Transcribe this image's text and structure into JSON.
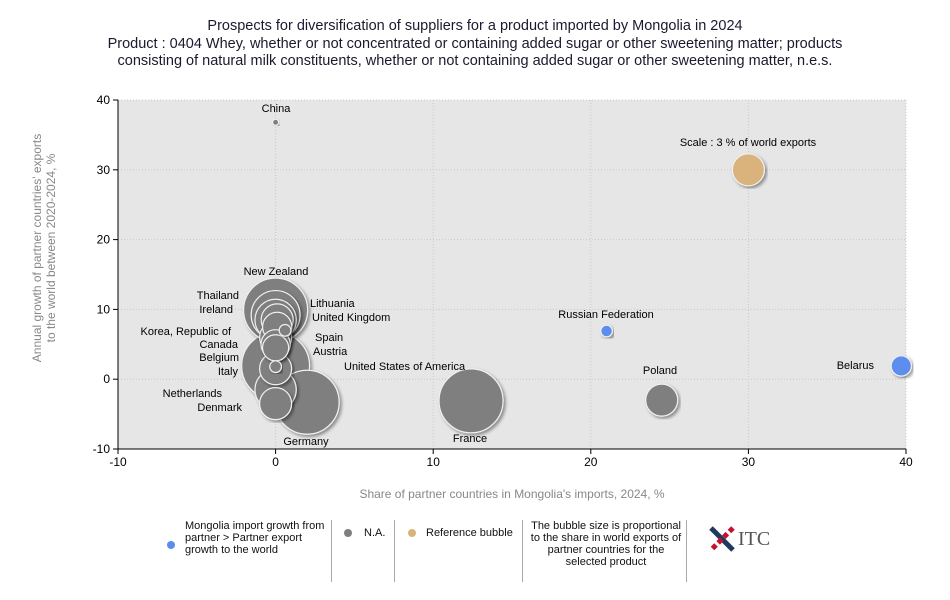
{
  "chart_data": {
    "type": "scatter",
    "title": "Prospects for diversification of suppliers for a product imported by Mongolia in 2024",
    "subtitle_1": "Product : 0404 Whey, whether or not concentrated or containing added sugar or other sweetening matter; products",
    "subtitle_2": "consisting of natural milk constituents, whether or not containing added sugar or other sweetening matter, n.e.s.",
    "xlabel": "Share of partner countries in Mongolia's imports, 2024, %",
    "ylabel_1": "Annual growth of partner countries' exports",
    "ylabel_2": "to the world between 2020-2024, %",
    "xlim": [
      -10,
      40
    ],
    "ylim": [
      -10,
      40
    ],
    "xticks": [
      "-10",
      "0",
      "10",
      "20",
      "30",
      "40"
    ],
    "yticks": [
      "-10",
      "0",
      "10",
      "20",
      "30",
      "40"
    ],
    "grid": true,
    "colors": {
      "higher": "#5b8def",
      "na": "#7f7f7f",
      "reference": "#d9b27c",
      "plot_bg": "#e6e6e6"
    },
    "points": [
      {
        "name": "China",
        "x": 0,
        "y": 36.8,
        "size": 0.1,
        "cat": "na"
      },
      {
        "name": "New Zealand",
        "x": 0,
        "y": 9.9,
        "size": 12,
        "cat": "na"
      },
      {
        "name": "Thailand",
        "x": 0,
        "y": 9.2,
        "size": 7,
        "cat": "na"
      },
      {
        "name": "Ireland",
        "x": 0,
        "y": 8.5,
        "size": 5,
        "cat": "na"
      },
      {
        "name": "Lithuania",
        "x": 0.1,
        "y": 8.5,
        "size": 3,
        "cat": "na"
      },
      {
        "name": "United Kingdom",
        "x": 0.1,
        "y": 7.5,
        "size": 2.5,
        "cat": "na"
      },
      {
        "name": "Spain",
        "x": 0.6,
        "y": 7,
        "size": 0.4,
        "cat": "na"
      },
      {
        "name": "Korea, Republic of",
        "x": 0,
        "y": 6,
        "size": 3,
        "cat": "na"
      },
      {
        "name": "Canada",
        "x": 0,
        "y": 5,
        "size": 2.5,
        "cat": "na"
      },
      {
        "name": "Austria",
        "x": 0,
        "y": 4.5,
        "size": 2,
        "cat": "na"
      },
      {
        "name": "United States of America",
        "x": 0,
        "y": 1.9,
        "size": 13.5,
        "cat": "na"
      },
      {
        "name": "Belgium",
        "x": 0,
        "y": 1.5,
        "size": 3,
        "cat": "na"
      },
      {
        "name": "Italy",
        "x": 0,
        "y": 1.8,
        "size": 0.4,
        "cat": "na"
      },
      {
        "name": "Netherlands",
        "x": 0,
        "y": -1.5,
        "size": 5,
        "cat": "na"
      },
      {
        "name": "Denmark",
        "x": 0,
        "y": -3.5,
        "size": 3,
        "cat": "na"
      },
      {
        "name": "Germany",
        "x": 2,
        "y": -3.3,
        "size": 12,
        "cat": "na"
      },
      {
        "name": "France",
        "x": 12.4,
        "y": -3.1,
        "size": 12,
        "cat": "na"
      },
      {
        "name": "Russian Federation",
        "x": 21,
        "y": 6.9,
        "size": 0.4,
        "cat": "higher"
      },
      {
        "name": "Poland",
        "x": 24.5,
        "y": -3,
        "size": 3,
        "cat": "na"
      },
      {
        "name": "Belarus",
        "x": 39.7,
        "y": 1.9,
        "size": 1.2,
        "cat": "higher"
      },
      {
        "name": "Scale : 3 % of world exports",
        "x": 30,
        "y": 30,
        "size": 3,
        "cat": "reference"
      }
    ]
  },
  "legend": {
    "higher": "Mongolia import growth from partner > Partner export growth to the world",
    "na": "N.A.",
    "reference": "Reference bubble",
    "note": "The bubble size is proportional to the share in world exports of partner countries for the selected product",
    "logo": "ITC"
  }
}
